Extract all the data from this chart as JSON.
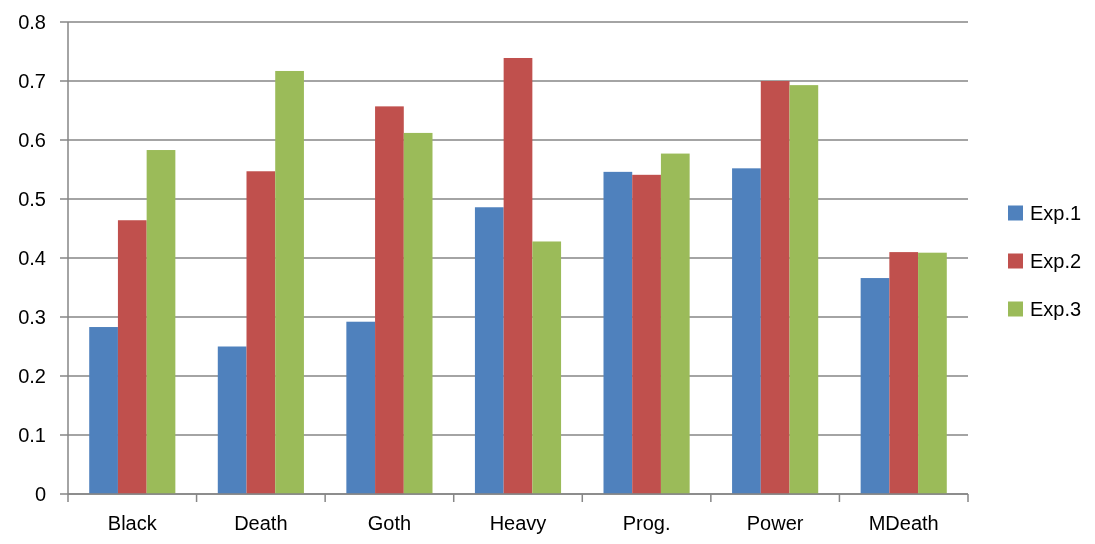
{
  "chart_data": {
    "type": "bar",
    "categories": [
      "Black",
      "Death",
      "Goth",
      "Heavy",
      "Prog.",
      "Power",
      "MDeath"
    ],
    "series": [
      {
        "name": "Exp.1",
        "color": "#4f81bd",
        "values": [
          0.283,
          0.25,
          0.292,
          0.486,
          0.546,
          0.552,
          0.366
        ]
      },
      {
        "name": "Exp.2",
        "color": "#c0504d",
        "values": [
          0.464,
          0.547,
          0.657,
          0.739,
          0.541,
          0.7,
          0.41
        ]
      },
      {
        "name": "Exp.3",
        "color": "#9bbb59",
        "values": [
          0.583,
          0.717,
          0.612,
          0.428,
          0.577,
          0.693,
          0.409
        ]
      }
    ],
    "ylim": [
      0,
      0.8
    ],
    "yticks": [
      0,
      0.1,
      0.2,
      0.3,
      0.4,
      0.5,
      0.6,
      0.7,
      0.8
    ],
    "grid": "y",
    "legend": "right"
  }
}
